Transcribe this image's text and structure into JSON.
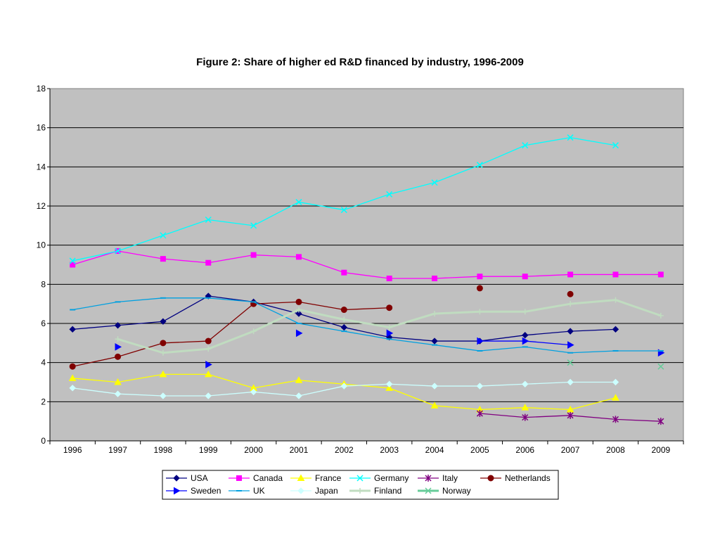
{
  "chart_data": {
    "type": "line",
    "title": "Figure 2:  Share of higher ed R&D financed by industry, 1996-2009",
    "xlabel": "",
    "ylabel": "",
    "categories": [
      "1996",
      "1997",
      "1998",
      "1999",
      "2000",
      "2001",
      "2002",
      "2003",
      "2004",
      "2005",
      "2006",
      "2007",
      "2008",
      "2009"
    ],
    "ylim": [
      0,
      18
    ],
    "yticks": [
      "0",
      "2",
      "4",
      "6",
      "8",
      "10",
      "12",
      "14",
      "16",
      "18"
    ],
    "grid": "horizontal",
    "legend_position": "bottom",
    "plot_background": "#c0c0c0",
    "series": [
      {
        "name": "USA",
        "color": "#000080",
        "marker": "diamond",
        "values": [
          5.7,
          5.9,
          6.1,
          7.4,
          7.1,
          6.5,
          5.8,
          5.3,
          5.1,
          5.1,
          5.4,
          5.6,
          5.7,
          null
        ]
      },
      {
        "name": "Canada",
        "color": "#ff00ff",
        "marker": "square",
        "values": [
          9.0,
          9.7,
          9.3,
          9.1,
          9.5,
          9.4,
          8.6,
          8.3,
          8.3,
          8.4,
          8.4,
          8.5,
          8.5,
          8.5
        ]
      },
      {
        "name": "France",
        "color": "#ffff00",
        "marker": "triangle",
        "values": [
          3.2,
          3.0,
          3.4,
          3.4,
          2.7,
          3.1,
          2.9,
          2.7,
          1.8,
          1.6,
          1.7,
          1.6,
          2.2,
          null
        ]
      },
      {
        "name": "Germany",
        "color": "#00ffff",
        "marker": "x",
        "values": [
          9.2,
          9.7,
          10.5,
          11.3,
          11.0,
          12.2,
          11.8,
          12.6,
          13.2,
          14.1,
          15.1,
          15.5,
          15.1,
          null
        ]
      },
      {
        "name": "Italy",
        "color": "#800080",
        "marker": "star",
        "values": [
          null,
          null,
          null,
          null,
          null,
          null,
          null,
          null,
          null,
          1.4,
          1.2,
          1.3,
          1.1,
          1.0
        ]
      },
      {
        "name": "Netherlands",
        "color": "#800000",
        "marker": "circle",
        "values": [
          3.8,
          4.3,
          5.0,
          5.1,
          7.0,
          7.1,
          6.7,
          6.8,
          null,
          7.8,
          null,
          7.5,
          null,
          null
        ]
      },
      {
        "name": "Sweden",
        "color": "#0000ff",
        "marker": "triangle-right",
        "values": [
          null,
          4.8,
          null,
          3.9,
          null,
          5.5,
          null,
          5.5,
          null,
          5.1,
          5.1,
          4.9,
          null,
          4.5
        ]
      },
      {
        "name": "UK",
        "color": "#00a0e0",
        "marker": "dash",
        "values": [
          6.7,
          7.1,
          7.3,
          7.3,
          7.1,
          6.0,
          5.6,
          5.2,
          4.9,
          4.6,
          4.8,
          4.5,
          4.6,
          4.6
        ]
      },
      {
        "name": "Japan",
        "color": "#ccffff",
        "marker": "diamond",
        "values": [
          2.7,
          2.4,
          2.3,
          2.3,
          2.5,
          2.3,
          2.8,
          2.9,
          2.8,
          2.8,
          2.9,
          3.0,
          3.0,
          null
        ]
      },
      {
        "name": "Finland",
        "color": "#c0dcc0",
        "marker": "plus",
        "width": 3,
        "values": [
          null,
          5.2,
          4.5,
          4.7,
          5.6,
          6.7,
          6.2,
          5.8,
          6.5,
          6.6,
          6.6,
          7.0,
          7.2,
          6.4
        ]
      },
      {
        "name": "Norway",
        "color": "#66cc99",
        "marker": "x",
        "width": 3,
        "values": [
          null,
          null,
          null,
          null,
          null,
          null,
          null,
          null,
          null,
          null,
          null,
          4.0,
          null,
          3.8
        ]
      }
    ]
  }
}
